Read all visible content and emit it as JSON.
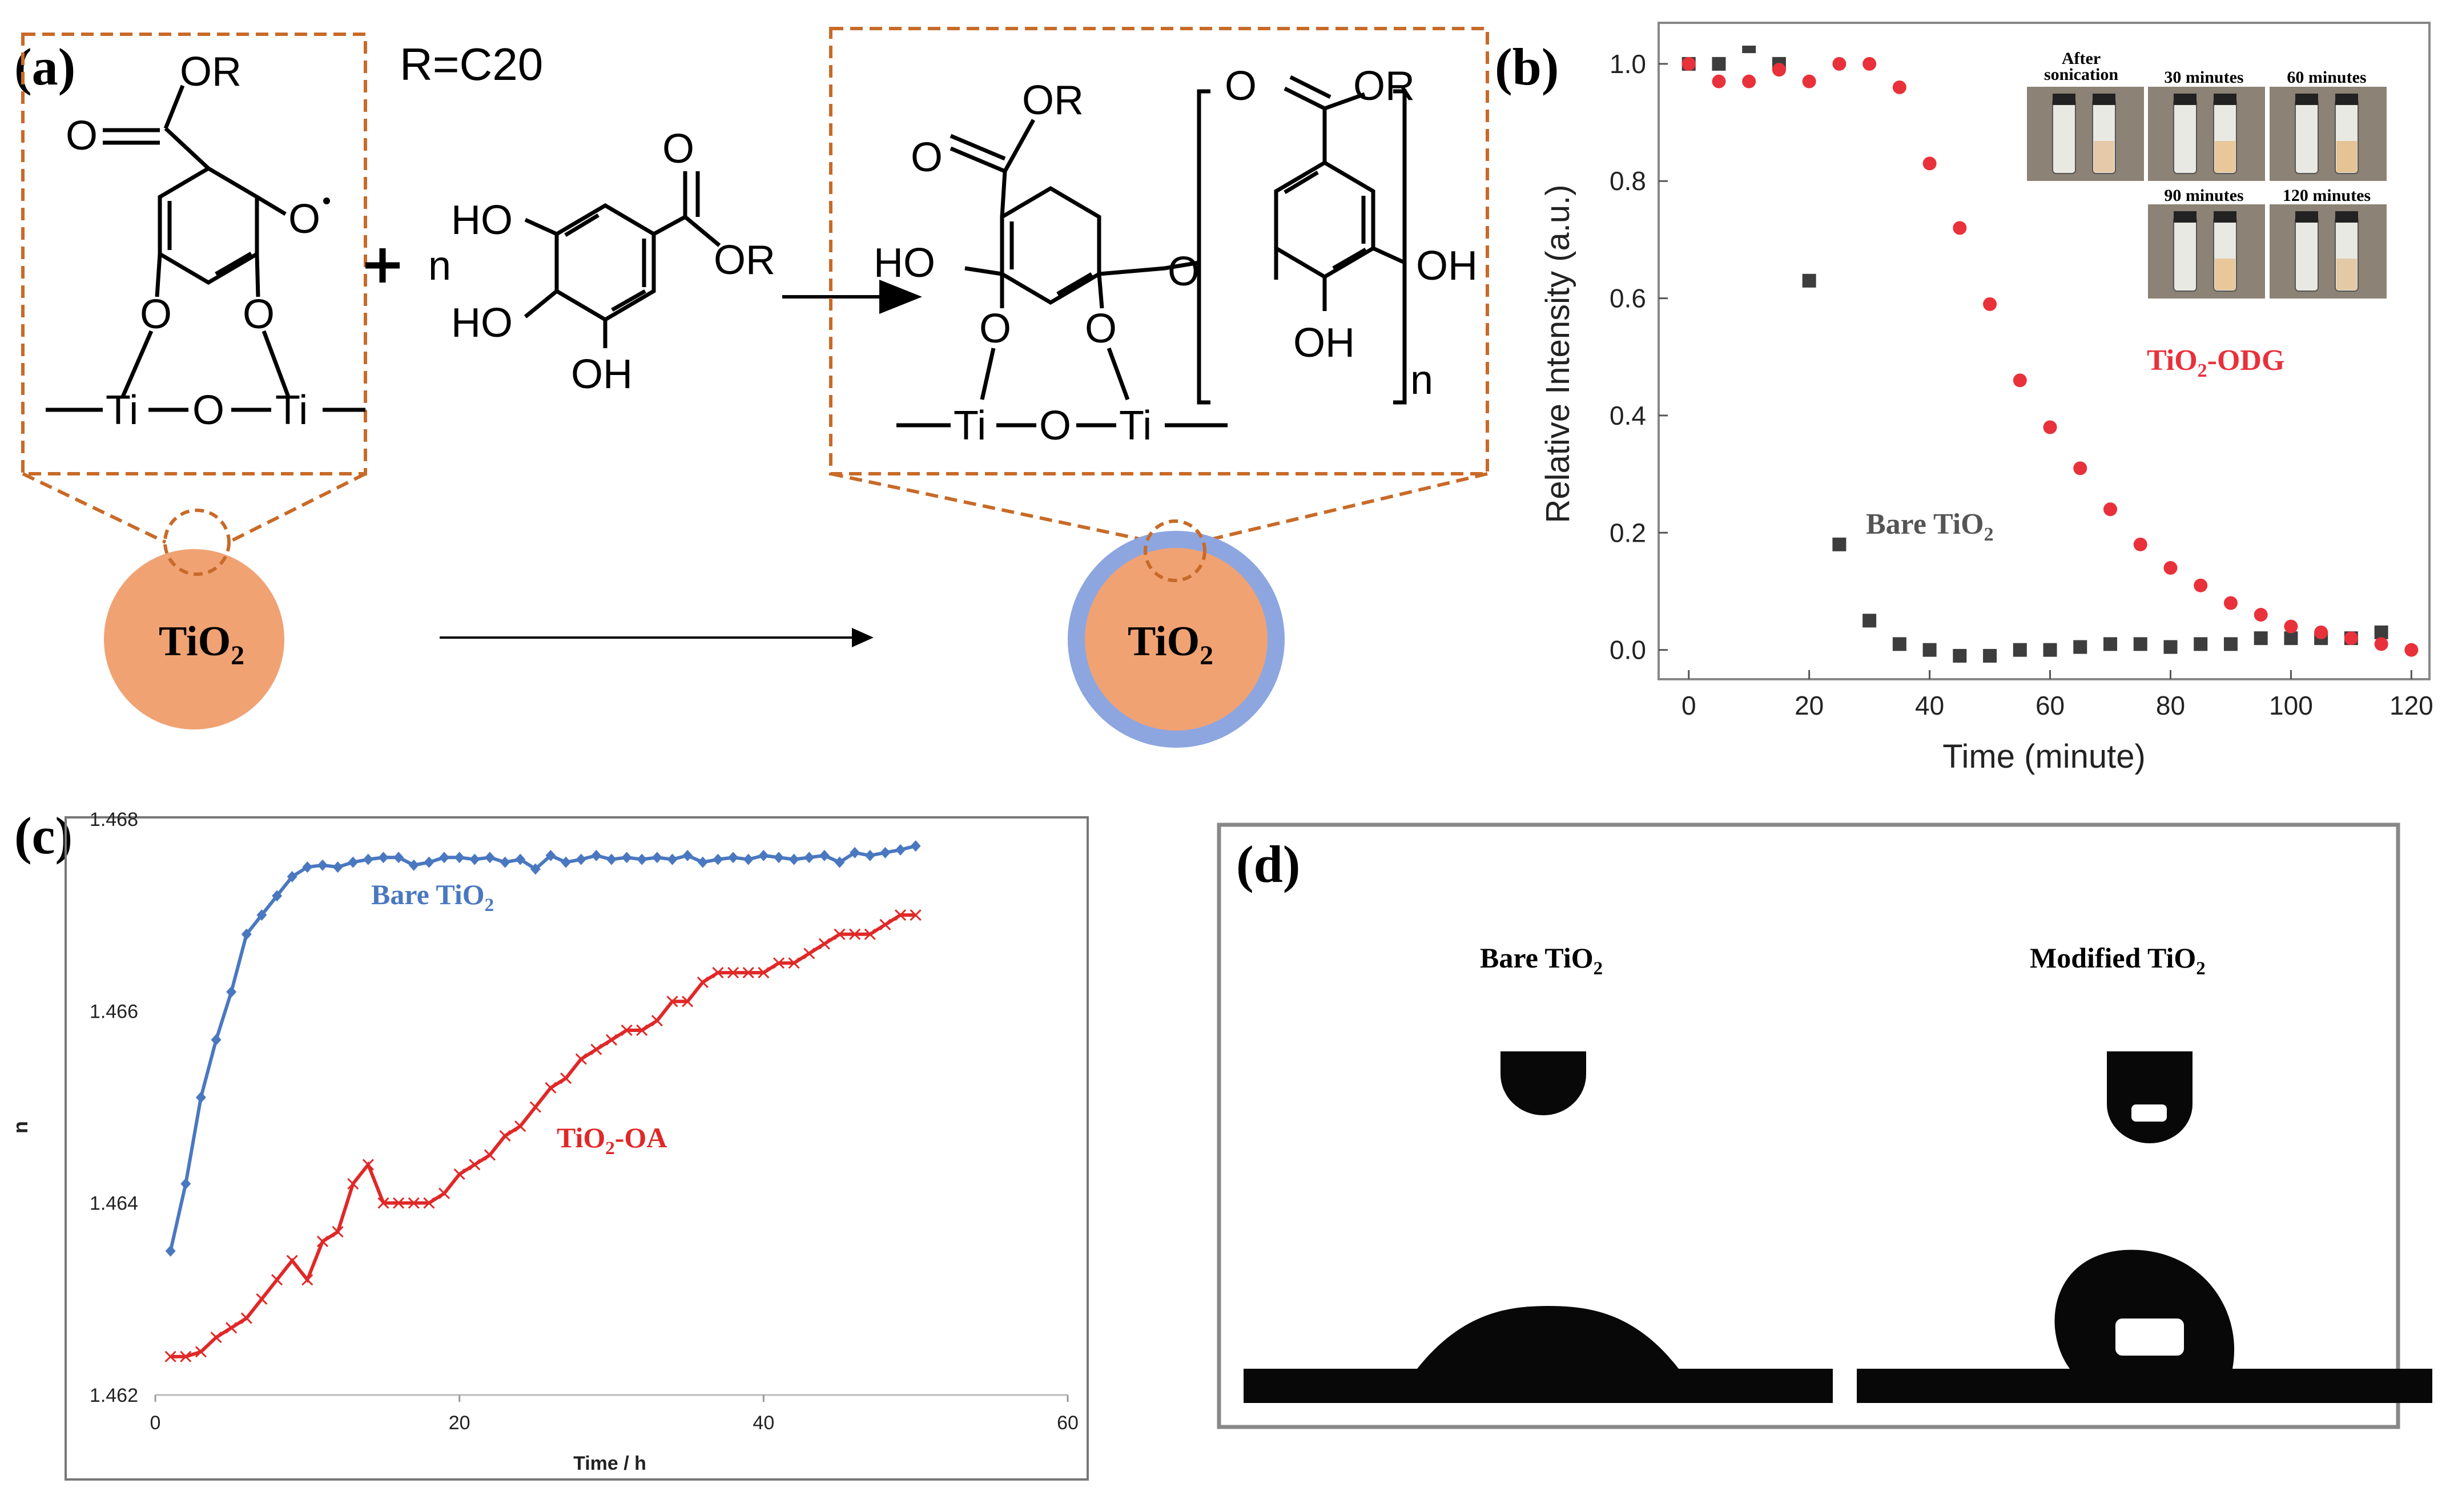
{
  "panels": {
    "a": {
      "label": "(a)",
      "r_note": "R=C20",
      "n_label": "n",
      "particle_label": "TiO",
      "particle_sub": "2",
      "left_frag": {
        "or": "OR",
        "o": "O",
        "radical": "O",
        "o1": "O",
        "o2": "O",
        "ti1": "Ti",
        "obridge": "O",
        "ti2": "Ti"
      },
      "gallate": {
        "o": "O",
        "or": "OR",
        "ho1": "HO",
        "ho2": "HO",
        "oh": "OH"
      },
      "right_frag": {
        "or1": "OR",
        "o1": "O",
        "ho": "HO",
        "oether": "O",
        "o2": "O",
        "or2": "OR",
        "oh1": "OH",
        "oh2": "OH",
        "o3": "O",
        "o4": "O",
        "ti1": "Ti",
        "obridge": "O",
        "ti2": "Ti",
        "n": "n"
      }
    },
    "b": {
      "label": "(b)"
    },
    "c": {
      "label": "(c)"
    },
    "d": {
      "label": "(d)",
      "bare_label": "Bare TiO",
      "bare_sub": "2",
      "mod_label": "Modified TiO",
      "mod_sub": "2"
    }
  },
  "chart_data": [
    {
      "panel": "b",
      "type": "scatter",
      "xlabel": "Time (minute)",
      "ylabel": "Relative Intensity (a.u.)",
      "xlim": [
        -5,
        123
      ],
      "ylim": [
        -0.05,
        1.07
      ],
      "xticks": [
        0,
        20,
        40,
        60,
        80,
        100,
        120
      ],
      "yticks": [
        0.0,
        0.2,
        0.4,
        0.6,
        0.8,
        1.0
      ],
      "ytick_labels": [
        "0.0",
        "0.2",
        "0.4",
        "0.6",
        "0.8",
        "1.0"
      ],
      "series": [
        {
          "name": "Bare TiO2",
          "label_main": "Bare TiO",
          "label_sub": "2",
          "color": "#3d3d3d",
          "marker": "square",
          "x": [
            0,
            5,
            10,
            15,
            20,
            25,
            30,
            35,
            40,
            45,
            50,
            55,
            60,
            65,
            70,
            75,
            80,
            85,
            90,
            95,
            100,
            105,
            110,
            115
          ],
          "y": [
            1.0,
            1.0,
            1.03,
            1.0,
            0.63,
            0.18,
            0.05,
            0.01,
            0.0,
            -0.01,
            -0.01,
            0.0,
            0.0,
            0.005,
            0.01,
            0.01,
            0.005,
            0.01,
            0.01,
            0.02,
            0.02,
            0.02,
            0.02,
            0.03
          ]
        },
        {
          "name": "TiO2-ODG",
          "label_main": "TiO",
          "label_sub": "2",
          "label_tail": "-ODG",
          "color": "#e8313a",
          "marker": "circle",
          "x": [
            0,
            5,
            10,
            15,
            20,
            25,
            30,
            35,
            40,
            45,
            50,
            55,
            60,
            65,
            70,
            75,
            80,
            85,
            90,
            95,
            100,
            105,
            110,
            115,
            120
          ],
          "y": [
            1.0,
            0.97,
            0.97,
            0.99,
            0.97,
            1.0,
            1.0,
            0.96,
            0.83,
            0.72,
            0.59,
            0.46,
            0.38,
            0.31,
            0.24,
            0.18,
            0.14,
            0.11,
            0.08,
            0.06,
            0.04,
            0.03,
            0.02,
            0.01,
            0.0
          ]
        }
      ],
      "inset": {
        "labels": [
          "After sonication",
          "30 minutes",
          "60 minutes",
          "90 minutes",
          "120 minutes"
        ],
        "after_line1": "After",
        "after_line2": "sonication"
      }
    },
    {
      "panel": "c",
      "type": "line",
      "xlabel": "Time / h",
      "ylabel": "n",
      "xlim": [
        0,
        60
      ],
      "ylim": [
        1.462,
        1.468
      ],
      "xticks": [
        0,
        20,
        40,
        60
      ],
      "yticks": [
        1.462,
        1.464,
        1.466,
        1.468
      ],
      "ytick_labels": [
        "1.462",
        "1.464",
        "1.466",
        "1.468"
      ],
      "series": [
        {
          "name": "Bare TiO2",
          "label_main": "Bare TiO",
          "label_sub": "2",
          "color": "#4a78c0",
          "marker": "diamond",
          "x": [
            1,
            2,
            3,
            4,
            5,
            6,
            7,
            8,
            9,
            10,
            11,
            12,
            13,
            14,
            15,
            16,
            17,
            18,
            19,
            20,
            21,
            22,
            23,
            24,
            25,
            26,
            27,
            28,
            29,
            30,
            31,
            32,
            33,
            34,
            35,
            36,
            37,
            38,
            39,
            40,
            41,
            42,
            43,
            44,
            45,
            46,
            47,
            48,
            49,
            50
          ],
          "y": [
            1.4635,
            1.4642,
            1.4651,
            1.4657,
            1.4662,
            1.4668,
            1.467,
            1.4672,
            1.4674,
            1.4675,
            1.46752,
            1.4675,
            1.46755,
            1.46758,
            1.4676,
            1.4676,
            1.46752,
            1.46755,
            1.4676,
            1.4676,
            1.46758,
            1.4676,
            1.46755,
            1.46758,
            1.46748,
            1.46762,
            1.46755,
            1.46758,
            1.46762,
            1.46758,
            1.4676,
            1.46758,
            1.4676,
            1.46758,
            1.46762,
            1.46755,
            1.46758,
            1.4676,
            1.46758,
            1.46762,
            1.4676,
            1.46758,
            1.4676,
            1.46762,
            1.46755,
            1.46765,
            1.46762,
            1.46765,
            1.46768,
            1.46772
          ]
        },
        {
          "name": "TiO2-OA",
          "label_main": "TiO",
          "label_sub": "2",
          "label_tail": "-OA",
          "color": "#e02828",
          "marker": "x",
          "x": [
            1,
            2,
            3,
            4,
            5,
            6,
            7,
            8,
            9,
            10,
            11,
            12,
            13,
            14,
            15,
            16,
            17,
            18,
            19,
            20,
            21,
            22,
            23,
            24,
            25,
            26,
            27,
            28,
            29,
            30,
            31,
            32,
            33,
            34,
            35,
            36,
            37,
            38,
            39,
            40,
            41,
            42,
            43,
            44,
            45,
            46,
            47,
            48,
            49,
            50
          ],
          "y": [
            1.4624,
            1.4624,
            1.46245,
            1.4626,
            1.4627,
            1.4628,
            1.463,
            1.4632,
            1.4634,
            1.4632,
            1.4636,
            1.4637,
            1.4642,
            1.4644,
            1.464,
            1.464,
            1.464,
            1.464,
            1.4641,
            1.4643,
            1.4644,
            1.4645,
            1.4647,
            1.4648,
            1.465,
            1.4652,
            1.4653,
            1.4655,
            1.4656,
            1.4657,
            1.4658,
            1.4658,
            1.4659,
            1.4661,
            1.4661,
            1.4663,
            1.4664,
            1.4664,
            1.4664,
            1.4664,
            1.4665,
            1.4665,
            1.4666,
            1.4667,
            1.4668,
            1.4668,
            1.4668,
            1.4669,
            1.467,
            1.467
          ]
        }
      ]
    }
  ]
}
